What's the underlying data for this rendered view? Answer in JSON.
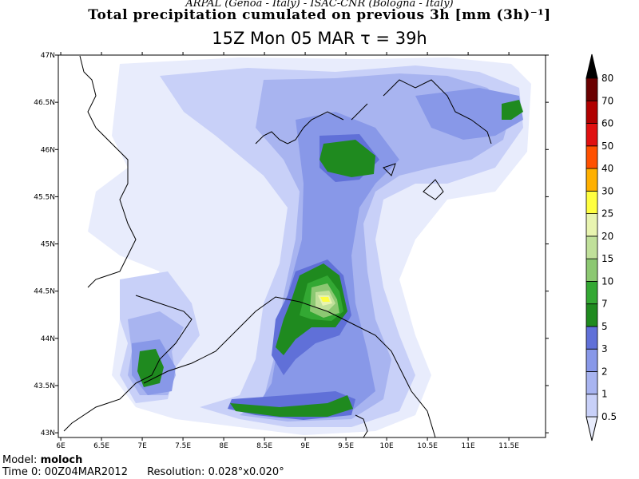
{
  "header": {
    "credits": "ARPAL (Genoa - Italy)   -   ISAC-CNR (Bologna - Italy)",
    "title": "Total precipitation cumulated on previous 3h [mm (3h)⁻¹]",
    "subtitle": "15Z Mon 05 MAR   τ = 39h"
  },
  "map": {
    "lat_ticks": [
      "47N",
      "46.5N",
      "46N",
      "45.5N",
      "45N",
      "44.5N",
      "44N",
      "43.5N",
      "43N"
    ],
    "lon_ticks": [
      "6E",
      "6.5E",
      "7E",
      "7.5E",
      "8E",
      "8.5E",
      "9E",
      "9.5E",
      "10E",
      "10.5E",
      "11E",
      "11.5E"
    ],
    "lat_range": [
      42.95,
      47.0
    ],
    "lon_range": [
      5.97,
      11.95
    ]
  },
  "colorbar": {
    "levels": [
      "0.5",
      "1",
      "2",
      "3",
      "5",
      "7",
      "10",
      "15",
      "20",
      "25",
      "30",
      "40",
      "50",
      "60",
      "70",
      "80"
    ],
    "colors": [
      "#e8ecfc",
      "#c8d0f8",
      "#a8b4f0",
      "#8898e8",
      "#6070d8",
      "#1f8a1f",
      "#33a833",
      "#8cc872",
      "#c0e09a",
      "#e8f4b0",
      "#ffff40",
      "#ffb000",
      "#ff5000",
      "#e01010",
      "#b00000",
      "#6a0000",
      "#000000"
    ]
  },
  "footer": {
    "model_label": "Model:",
    "model_value": "moloch",
    "time_label": "Time 0:",
    "time_value": "00Z04MAR2012",
    "resolution_label": "Resolution:",
    "resolution_value": "0.028°x0.020°"
  }
}
